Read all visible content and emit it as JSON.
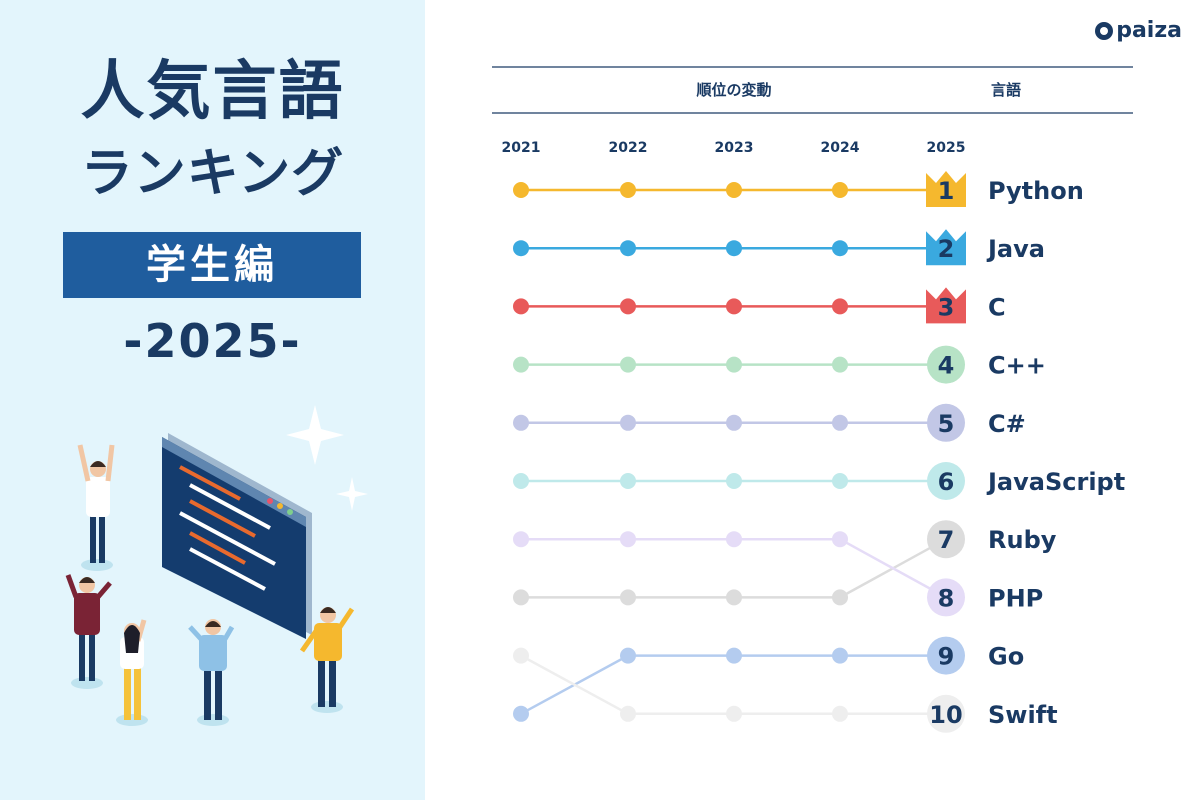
{
  "poster": {
    "title": "人気言語",
    "subtitle": "ランキング",
    "edition": "学生編",
    "year_label": "-2025-",
    "brand": "paiza"
  },
  "header": {
    "rank_change": "順位の変動",
    "language": "言語"
  },
  "chart_data": {
    "type": "line",
    "x": [
      "2021",
      "2022",
      "2023",
      "2024",
      "2025"
    ],
    "rank_axis": "reversed",
    "series": [
      {
        "name": "Python",
        "ranks": [
          1,
          1,
          1,
          1,
          1
        ],
        "color": "#f5b82e",
        "opacity": 1.0,
        "badge": "crown"
      },
      {
        "name": "Java",
        "ranks": [
          2,
          2,
          2,
          2,
          2
        ],
        "color": "#3aa9df",
        "opacity": 1.0,
        "badge": "crown"
      },
      {
        "name": "C",
        "ranks": [
          3,
          3,
          3,
          3,
          3
        ],
        "color": "#e85a5a",
        "opacity": 1.0,
        "badge": "crown"
      },
      {
        "name": "C++",
        "ranks": [
          4,
          4,
          4,
          4,
          4
        ],
        "color": "#b7e3c6",
        "opacity": 1.0,
        "badge": "circle"
      },
      {
        "name": "C#",
        "ranks": [
          5,
          5,
          5,
          5,
          5
        ],
        "color": "#c2c7e6",
        "opacity": 1.0,
        "badge": "circle"
      },
      {
        "name": "JavaScript",
        "ranks": [
          6,
          6,
          6,
          6,
          6
        ],
        "color": "#bfe9ea",
        "opacity": 1.0,
        "badge": "circle"
      },
      {
        "name": "Ruby",
        "ranks": [
          8,
          8,
          8,
          8,
          7
        ],
        "color": "#dcdcdc",
        "opacity": 1.0,
        "badge": "circle"
      },
      {
        "name": "PHP",
        "ranks": [
          7,
          7,
          7,
          7,
          8
        ],
        "color": "#e5dcf7",
        "opacity": 1.0,
        "badge": "circle"
      },
      {
        "name": "Go",
        "ranks": [
          10,
          9,
          9,
          9,
          9
        ],
        "color": "#b4ccef",
        "opacity": 1.0,
        "badge": "circle"
      },
      {
        "name": "Swift",
        "ranks": [
          9,
          10,
          10,
          10,
          10
        ],
        "color": "#eeeeee",
        "opacity": 1.0,
        "badge": "circle"
      }
    ]
  }
}
